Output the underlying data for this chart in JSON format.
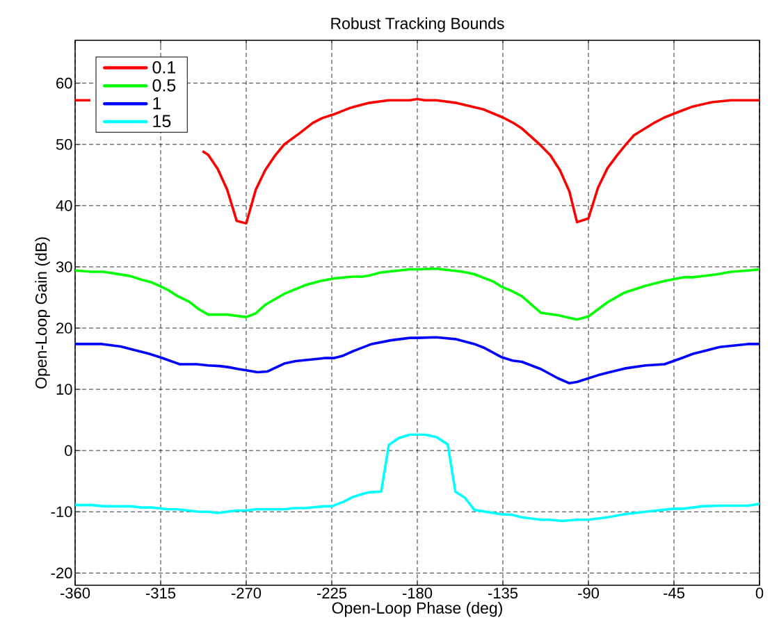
{
  "chart_data": {
    "type": "line",
    "title": "Robust Tracking Bounds",
    "xlabel": "Open-Loop Phase (deg)",
    "ylabel": "Open-Loop Gain (dB)",
    "xlim": [
      -360,
      0
    ],
    "ylim": [
      -22,
      67
    ],
    "xticks": [
      -360,
      -315,
      -270,
      -225,
      -180,
      -135,
      -90,
      -45,
      0
    ],
    "yticks": [
      -20,
      -10,
      0,
      10,
      20,
      30,
      40,
      50,
      60
    ],
    "grid": true,
    "legend": "top left",
    "line_style": "solid",
    "series": [
      {
        "name": "0.1",
        "color": "#ff0000",
        "x": [
          -360,
          -352,
          -322,
          -293,
          -290,
          -285,
          -280,
          -275,
          -270,
          -265,
          -260,
          -255,
          -250,
          -242,
          -235,
          -230,
          -224,
          -215,
          -205,
          -195,
          -184,
          -180,
          -176,
          -170,
          -160,
          -145,
          -135,
          -130,
          -125,
          -116,
          -110,
          -105,
          -100,
          -96,
          -90,
          -85,
          -80,
          -75,
          -70,
          -66,
          -55,
          -50,
          -41,
          -35,
          -25,
          -15,
          0
        ],
        "values": [
          57.2,
          57.2,
          null,
          48.9,
          48.3,
          46.0,
          42.6,
          37.5,
          37.1,
          42.6,
          45.8,
          48.1,
          50.0,
          51.8,
          53.5,
          54.3,
          54.9,
          56.0,
          56.8,
          57.2,
          57.2,
          57.4,
          57.2,
          57.2,
          56.8,
          55.7,
          54.4,
          53.6,
          52.6,
          50.1,
          48.2,
          45.8,
          42.3,
          37.3,
          37.9,
          42.9,
          46.1,
          48.2,
          50.1,
          51.5,
          53.6,
          54.4,
          55.5,
          56.2,
          56.9,
          57.2,
          57.2
        ]
      },
      {
        "name": "0.5",
        "color": "#00ff00",
        "x": [
          -360,
          -351,
          -345,
          -335,
          -331,
          -325,
          -320,
          -315,
          -311,
          -306,
          -300,
          -295,
          -290,
          -280,
          -270,
          -265,
          -260,
          -250,
          -239,
          -231,
          -224,
          -214,
          -209,
          -205,
          -199,
          -190,
          -184,
          -180,
          -170,
          -156,
          -150,
          -140,
          -136,
          -130,
          -125,
          -115,
          -106,
          -96,
          -90,
          -80,
          -71,
          -60,
          -50,
          -40,
          -35,
          -22,
          -15,
          -6,
          0
        ],
        "values": [
          29.4,
          29.2,
          29.2,
          28.7,
          28.5,
          27.9,
          27.5,
          26.8,
          26.2,
          25.2,
          24.3,
          23.1,
          22.2,
          22.2,
          21.8,
          22.4,
          23.8,
          25.6,
          27.0,
          27.7,
          28.1,
          28.4,
          28.4,
          28.6,
          29.1,
          29.4,
          29.6,
          29.6,
          29.7,
          29.2,
          28.8,
          27.6,
          26.8,
          26.0,
          25.2,
          22.5,
          22.1,
          21.4,
          21.9,
          24.2,
          25.8,
          26.9,
          27.7,
          28.3,
          28.3,
          28.8,
          29.2,
          29.4,
          29.6
        ]
      },
      {
        "name": "1",
        "color": "#0000ff",
        "x": [
          -360,
          -346,
          -336,
          -330,
          -321,
          -315,
          -305,
          -296,
          -290,
          -284,
          -279,
          -274,
          -270,
          -264,
          -259,
          -250,
          -244,
          -235,
          -229,
          -224,
          -219,
          -214,
          -204,
          -194,
          -184,
          -180,
          -170,
          -160,
          -150,
          -145,
          -136,
          -130,
          -125,
          -115,
          -106,
          -100,
          -96,
          -85,
          -80,
          -71,
          -60,
          -50,
          -40,
          -35,
          -21,
          -6,
          0
        ],
        "values": [
          17.4,
          17.4,
          17.0,
          16.5,
          15.8,
          15.2,
          14.1,
          14.1,
          13.9,
          13.8,
          13.6,
          13.3,
          13.1,
          12.8,
          12.9,
          14.2,
          14.6,
          14.9,
          15.1,
          15.1,
          15.5,
          16.2,
          17.4,
          18.0,
          18.4,
          18.4,
          18.5,
          18.2,
          17.4,
          16.8,
          15.3,
          14.7,
          14.5,
          13.3,
          11.8,
          11.0,
          11.2,
          12.3,
          12.7,
          13.4,
          13.9,
          14.1,
          15.2,
          15.8,
          16.9,
          17.4,
          17.4
        ]
      },
      {
        "name": "15",
        "color": "#00ffff",
        "x": [
          -360,
          -351,
          -345,
          -331,
          -325,
          -320,
          -311,
          -306,
          -295,
          -290,
          -285,
          -275,
          -270,
          -265,
          -250,
          -245,
          -239,
          -229,
          -225,
          -219,
          -214,
          -209,
          -205,
          -199,
          -195,
          -190,
          -184,
          -176,
          -170,
          -164,
          -160,
          -155,
          -150,
          -136,
          -130,
          -125,
          -115,
          -110,
          -104,
          -96,
          -90,
          -80,
          -71,
          -60,
          -45,
          -40,
          -30,
          -21,
          -6,
          0
        ],
        "values": [
          -8.9,
          -8.9,
          -9.1,
          -9.1,
          -9.3,
          -9.3,
          -9.6,
          -9.6,
          -10.0,
          -10.0,
          -10.2,
          -9.8,
          -9.8,
          -9.6,
          -9.6,
          -9.4,
          -9.4,
          -9.1,
          -9.1,
          -8.4,
          -7.6,
          -7.1,
          -6.8,
          -6.7,
          0.9,
          2.0,
          2.6,
          2.6,
          2.2,
          1.0,
          -6.7,
          -7.7,
          -9.7,
          -10.4,
          -10.5,
          -10.9,
          -11.3,
          -11.3,
          -11.5,
          -11.3,
          -11.3,
          -10.9,
          -10.4,
          -10.0,
          -9.5,
          -9.5,
          -9.1,
          -9.0,
          -9.0,
          -8.7
        ]
      }
    ]
  }
}
